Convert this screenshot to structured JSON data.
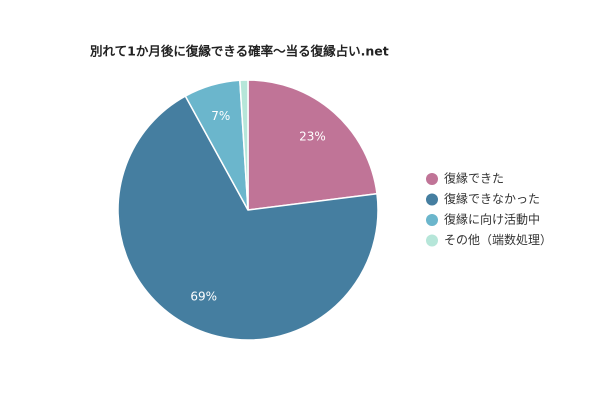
{
  "chart_data": {
    "type": "pie",
    "title": "別れて1か月後に復縁できる確率～当る復縁占い.net",
    "categories": [
      "復縁できた",
      "復縁できなかった",
      "復縁に向け活動中",
      "その他（端数処理）"
    ],
    "values": [
      23,
      69,
      7,
      1
    ],
    "value_labels": [
      "23%",
      "69%",
      "7%",
      null
    ],
    "colors": [
      "#c07497",
      "#457ea0",
      "#6bb6cc",
      "#b6e6d9"
    ],
    "legend": "right"
  }
}
